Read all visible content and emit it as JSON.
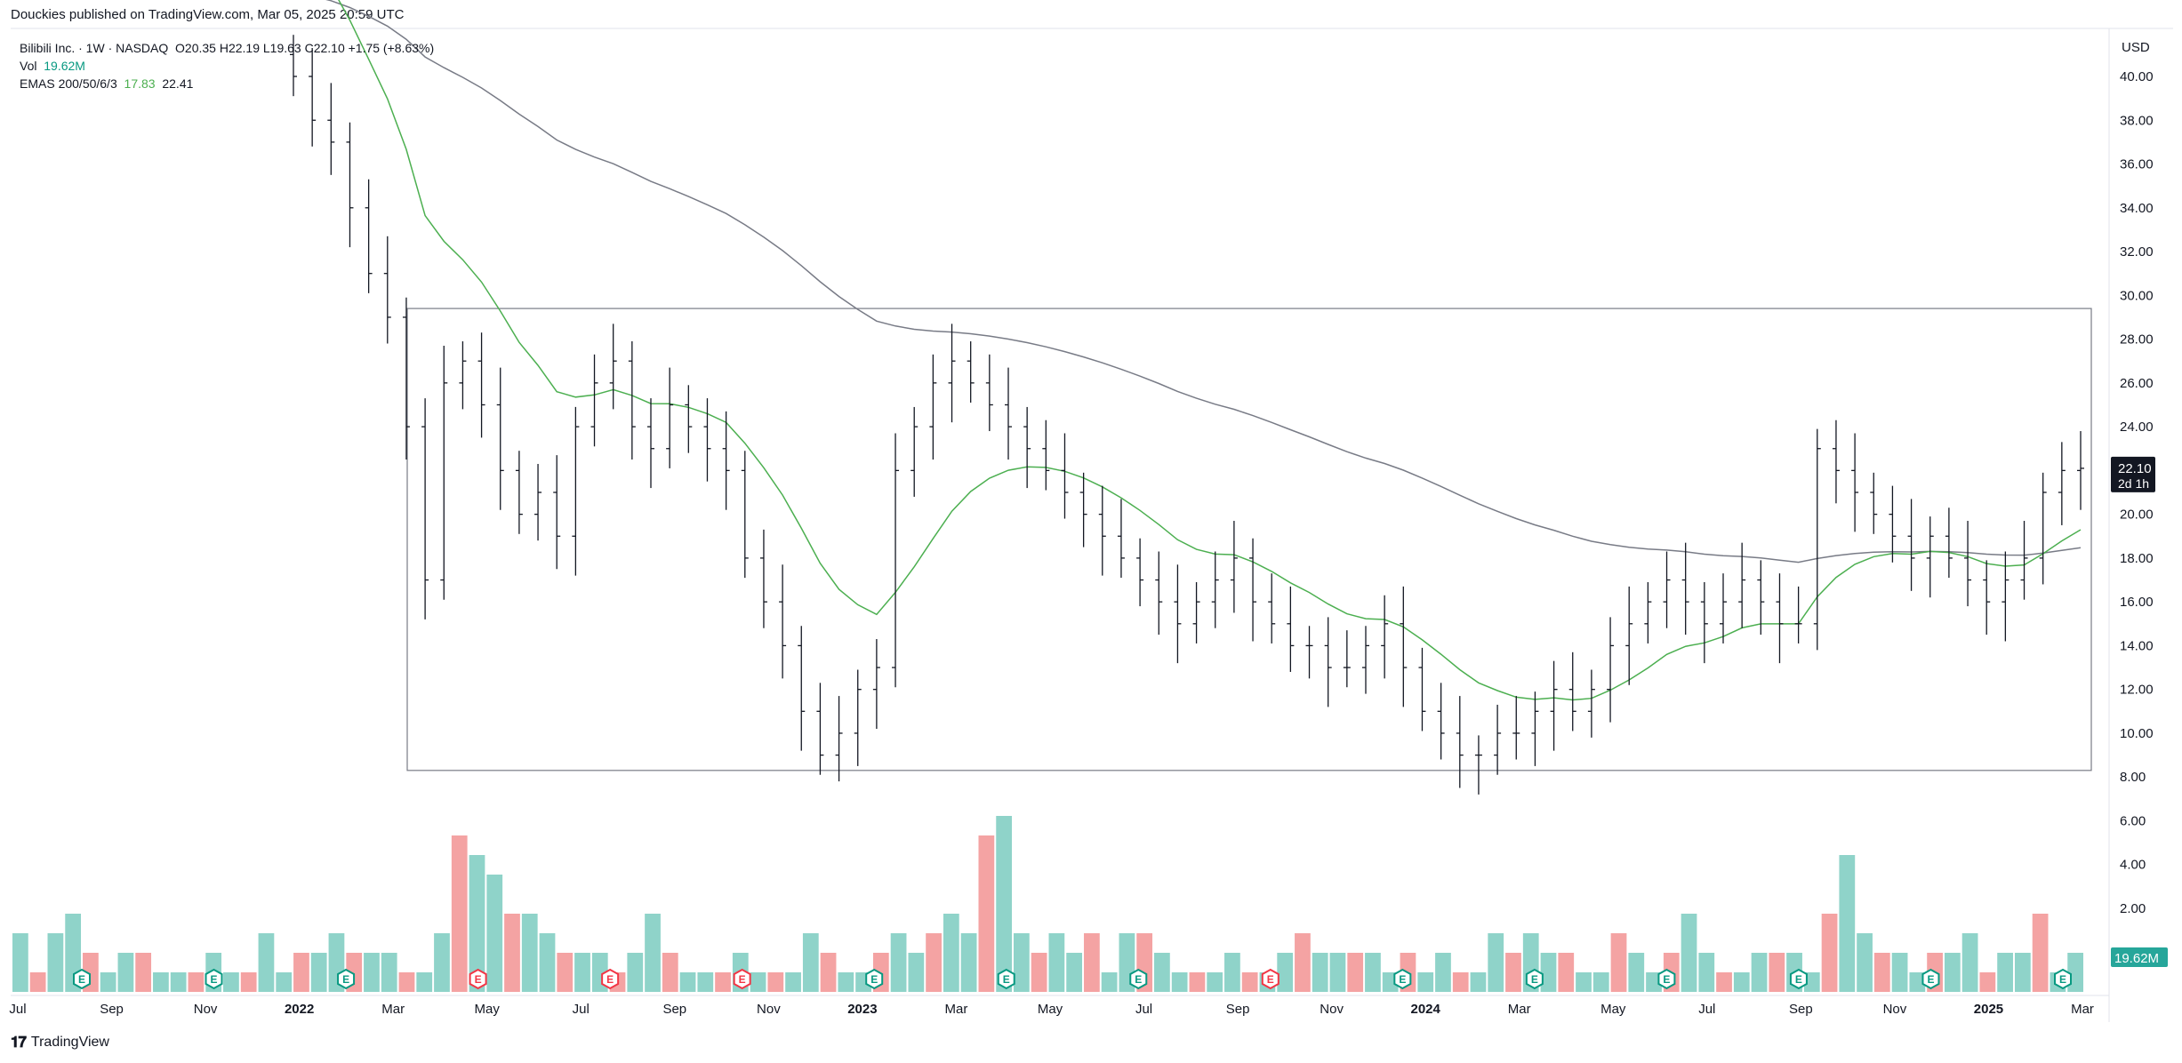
{
  "header": {
    "published": "Douckies published on TradingView.com, Mar 05, 2025 20:59 UTC"
  },
  "legend": {
    "symbol": "Bilibili Inc. · 1W · NASDAQ",
    "ohlc": "O20.35 H22.19 L19.63 C22.10 +1.75 (+8.63%)",
    "vol_label": "Vol",
    "vol_value": "19.62M",
    "ema_label": "EMAS 200/50/6/3",
    "ema_value1": "17.83",
    "ema_value2": "22.41"
  },
  "footer": {
    "brand": "TradingView"
  },
  "colors": {
    "up_volume": "#8fd3c9",
    "down_volume": "#f4a3a3",
    "ema50": "#4caf50",
    "ema200": "#787b86",
    "bars": "#131722",
    "accent_green": "#26a69a"
  },
  "chart_data": {
    "type": "ohlc",
    "currency": "USD",
    "y_ticks": [
      "40.00",
      "38.00",
      "36.00",
      "34.00",
      "32.00",
      "30.00",
      "28.00",
      "26.00",
      "24.00",
      "22.00",
      "20.00",
      "18.00",
      "16.00",
      "14.00",
      "12.00",
      "10.00",
      "8.00",
      "6.00",
      "4.00",
      "2.00"
    ],
    "ylim": [
      0,
      41.3
    ],
    "x_labels": [
      {
        "t": "Jul",
        "bold": false
      },
      {
        "t": "Sep",
        "bold": false
      },
      {
        "t": "Nov",
        "bold": false
      },
      {
        "t": "2022",
        "bold": true
      },
      {
        "t": "Mar",
        "bold": false
      },
      {
        "t": "May",
        "bold": false
      },
      {
        "t": "Jul",
        "bold": false
      },
      {
        "t": "Sep",
        "bold": false
      },
      {
        "t": "Nov",
        "bold": false
      },
      {
        "t": "2023",
        "bold": true
      },
      {
        "t": "Mar",
        "bold": false
      },
      {
        "t": "May",
        "bold": false
      },
      {
        "t": "Jul",
        "bold": false
      },
      {
        "t": "Sep",
        "bold": false
      },
      {
        "t": "Nov",
        "bold": false
      },
      {
        "t": "2024",
        "bold": true
      },
      {
        "t": "Mar",
        "bold": false
      },
      {
        "t": "May",
        "bold": false
      },
      {
        "t": "Jul",
        "bold": false
      },
      {
        "t": "Sep",
        "bold": false
      },
      {
        "t": "Nov",
        "bold": false
      },
      {
        "t": "2025",
        "bold": true
      },
      {
        "t": "Mar",
        "bold": false
      }
    ],
    "last_price": "22.10",
    "countdown": "2d 1h",
    "volume_last": "19.62M",
    "range_box": {
      "high": 29.4,
      "low": 8.3
    },
    "price_path_close": [
      40,
      38,
      37,
      34,
      31,
      29,
      24,
      17,
      26,
      27,
      25,
      22,
      20,
      21,
      19,
      24,
      26,
      27,
      24,
      23,
      25,
      24,
      23,
      22,
      18,
      16,
      14,
      11,
      9,
      10,
      12,
      13,
      22,
      24,
      26,
      27,
      26,
      25,
      24,
      23,
      22,
      21,
      20,
      19,
      18,
      17,
      16,
      15,
      16,
      17,
      18,
      16,
      15,
      14,
      14,
      13,
      13,
      14,
      15,
      13,
      11,
      10,
      9,
      9,
      10,
      10,
      11,
      12,
      11,
      12,
      14,
      15,
      16,
      17,
      16,
      15,
      16,
      17,
      16,
      15,
      15,
      23,
      22,
      21,
      20,
      19,
      18,
      19,
      18,
      17,
      16,
      17,
      18,
      21,
      22,
      22.1
    ],
    "volume_millions": [
      3,
      1,
      3,
      4,
      2,
      1,
      2,
      2,
      1,
      1,
      1,
      2,
      1,
      1,
      3,
      1,
      2,
      2,
      3,
      2,
      2,
      2,
      1,
      1,
      3,
      8,
      7,
      6,
      4,
      4,
      3,
      2,
      2,
      2,
      1,
      2,
      4,
      2,
      1,
      1,
      1,
      2,
      1,
      1,
      1,
      3,
      2,
      1,
      1,
      2,
      3,
      2,
      3,
      4,
      3,
      8,
      9,
      3,
      2,
      3,
      2,
      3,
      1,
      3,
      3,
      2,
      1,
      1,
      1,
      2,
      1,
      1,
      2,
      3,
      2,
      2,
      2,
      2,
      1,
      2,
      1,
      2,
      1,
      1,
      3,
      2,
      3,
      2,
      2,
      1,
      1,
      3,
      2,
      1,
      2,
      4,
      2,
      1,
      1,
      2,
      2,
      2,
      1,
      4,
      7,
      3,
      2,
      2,
      1,
      2,
      2,
      3,
      1,
      2,
      2,
      4,
      1,
      2
    ],
    "volume_markers": [
      "E",
      "E",
      "E",
      "E",
      "E",
      "E",
      "E",
      "E",
      "E",
      "E",
      "E",
      "E",
      "E",
      "E",
      "E",
      "E"
    ]
  }
}
